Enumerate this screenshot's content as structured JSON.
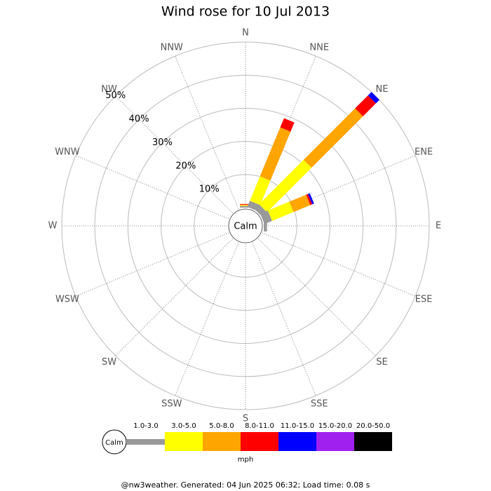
{
  "chart_data": {
    "type": "windrose",
    "title": "Wind rose for 10 Jul 2013",
    "categories": [
      "N",
      "NNE",
      "NE",
      "ENE",
      "E",
      "ESE",
      "SE",
      "SSE",
      "S",
      "SSW",
      "SW",
      "WSW",
      "W",
      "WNW",
      "NW",
      "NNW"
    ],
    "calm_label": "Calm",
    "rlim": [
      0,
      50
    ],
    "rticks": [
      {
        "value": 10,
        "label": "10%"
      },
      {
        "value": 20,
        "label": "20%"
      },
      {
        "value": 30,
        "label": "30%"
      },
      {
        "value": 40,
        "label": "40%"
      },
      {
        "value": 50,
        "label": "50%"
      }
    ],
    "series": [
      {
        "name": "1.0-3.0",
        "color": "#999999",
        "values": [
          0.5,
          2,
          2,
          2.5,
          1,
          0,
          0,
          0,
          0,
          0,
          0,
          0,
          0,
          0,
          0,
          0
        ]
      },
      {
        "name": "3.0-5.0",
        "color": "#ffff00",
        "values": [
          0.2,
          8,
          19,
          7,
          0,
          0,
          0,
          0,
          0,
          0,
          0,
          0,
          0,
          0,
          0,
          0
        ]
      },
      {
        "name": "5.0-8.0",
        "color": "#ffa500",
        "values": [
          0.2,
          16,
          22,
          5.5,
          0,
          0,
          0,
          0,
          0,
          0,
          0,
          0,
          0,
          0,
          0,
          0
        ]
      },
      {
        "name": "8.0-11.0",
        "color": "#ff0000",
        "values": [
          0.2,
          3,
          5.5,
          0.6,
          0,
          0,
          0,
          0,
          0,
          0,
          0,
          0,
          0,
          0,
          0,
          0
        ]
      },
      {
        "name": "11.0-15.0",
        "color": "#0000ff",
        "values": [
          0,
          0,
          1.5,
          0.6,
          0,
          0,
          0,
          0,
          0,
          0,
          0,
          0,
          0,
          0,
          0,
          0
        ]
      },
      {
        "name": "15.0-20.0",
        "color": "#a020f0",
        "values": [
          0,
          0,
          0,
          0,
          0,
          0,
          0,
          0,
          0,
          0,
          0,
          0,
          0,
          0,
          0,
          0
        ]
      },
      {
        "name": "20.0-50.0",
        "color": "#000000",
        "values": [
          0,
          0,
          0,
          0,
          0,
          0,
          0,
          0,
          0,
          0,
          0,
          0,
          0,
          0,
          0,
          0
        ]
      }
    ],
    "legend_unit": "mph",
    "footer": "@nw3weather. Generated: 04 Jun 2025 06:32; Load time: 0.08 s"
  }
}
